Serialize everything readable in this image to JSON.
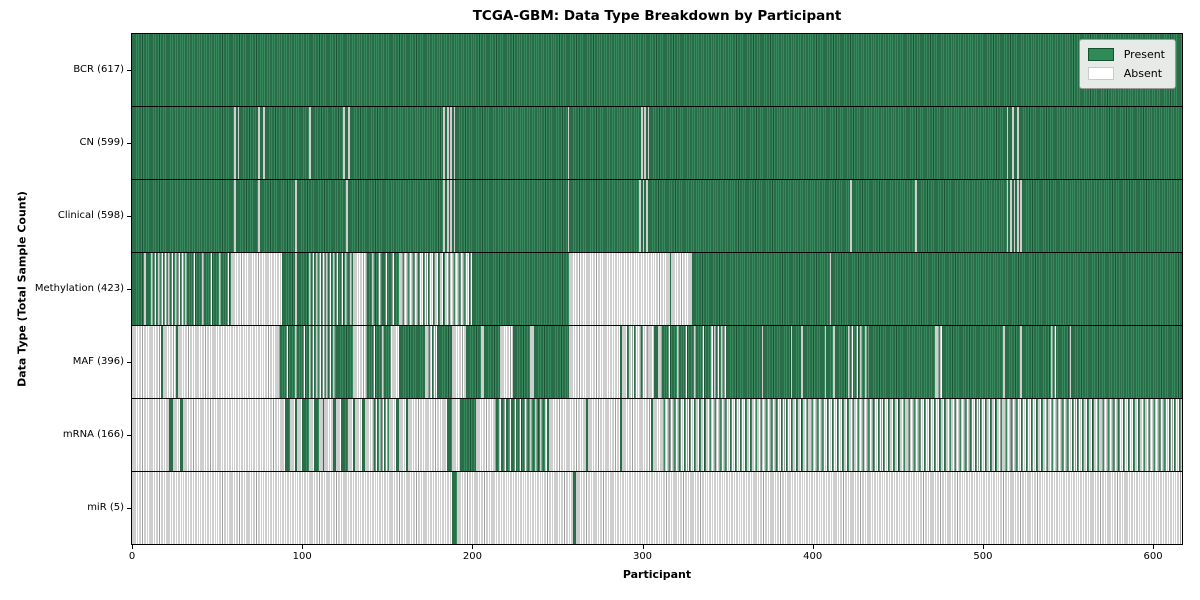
{
  "title": "TCGA-GBM: Data Type Breakdown by Participant",
  "xlabel": "Participant",
  "ylabel": "Data Type (Total Sample Count)",
  "legend": {
    "present_label": "Present",
    "absent_label": "Absent"
  },
  "colors": {
    "present": "#38895e",
    "present_edge": "#1a5434",
    "absent": "#ffffff",
    "absent_edge": "#9e9e9e",
    "axis": "#000000",
    "legend_bg": "#e7ebe7"
  },
  "x_ticks": [
    "0",
    "100",
    "200",
    "300",
    "400",
    "500",
    "600"
  ],
  "x_tick_values": [
    0,
    100,
    200,
    300,
    400,
    500,
    600
  ],
  "chart_data": {
    "type": "heatmap",
    "title": "TCGA-GBM: Data Type Breakdown by Participant",
    "xlabel": "Participant",
    "ylabel": "Data Type (Total Sample Count)",
    "legend": [
      "Present",
      "Absent"
    ],
    "legend_position": "upper right",
    "x_range": [
      0,
      617
    ],
    "states": {
      "1": "present",
      "0": "absent",
      "fraction": "share of participants present in segment"
    },
    "rows": [
      {
        "name": "bcr",
        "label": "BCR (617)",
        "total": 617,
        "segments": [
          [
            0,
            617,
            1
          ]
        ]
      },
      {
        "name": "cn",
        "label": "CN (599)",
        "total": 599,
        "segments": [
          [
            0,
            60,
            1
          ],
          [
            60,
            61,
            0
          ],
          [
            61,
            62,
            1
          ],
          [
            62,
            63,
            0
          ],
          [
            63,
            74,
            1
          ],
          [
            74,
            75,
            0
          ],
          [
            75,
            77,
            1
          ],
          [
            77,
            78,
            0
          ],
          [
            78,
            104,
            1
          ],
          [
            104,
            105,
            0
          ],
          [
            105,
            124,
            1
          ],
          [
            124,
            125,
            0
          ],
          [
            125,
            127,
            1
          ],
          [
            127,
            128,
            0
          ],
          [
            128,
            183,
            1
          ],
          [
            183,
            184,
            0
          ],
          [
            184,
            185,
            1
          ],
          [
            185,
            186,
            0
          ],
          [
            186,
            187,
            1
          ],
          [
            187,
            188,
            0
          ],
          [
            188,
            189,
            1
          ],
          [
            189,
            190,
            0
          ],
          [
            190,
            256,
            1
          ],
          [
            256,
            257,
            0
          ],
          [
            257,
            299,
            1
          ],
          [
            299,
            300,
            0
          ],
          [
            300,
            301,
            1
          ],
          [
            301,
            302,
            0
          ],
          [
            302,
            303,
            1
          ],
          [
            303,
            304,
            0
          ],
          [
            304,
            514,
            1
          ],
          [
            514,
            515,
            0
          ],
          [
            515,
            517,
            1
          ],
          [
            517,
            518,
            0
          ],
          [
            518,
            520,
            1
          ],
          [
            520,
            521,
            0
          ],
          [
            521,
            617,
            1
          ]
        ]
      },
      {
        "name": "clinical",
        "label": "Clinical (598)",
        "total": 598,
        "segments": [
          [
            0,
            60,
            1
          ],
          [
            60,
            61,
            0
          ],
          [
            61,
            74,
            1
          ],
          [
            74,
            75,
            0
          ],
          [
            75,
            96,
            1
          ],
          [
            96,
            97,
            0
          ],
          [
            97,
            126,
            1
          ],
          [
            126,
            127,
            0
          ],
          [
            127,
            183,
            1
          ],
          [
            183,
            184,
            0
          ],
          [
            184,
            185,
            1
          ],
          [
            185,
            186,
            0
          ],
          [
            186,
            187,
            1
          ],
          [
            187,
            188,
            0
          ],
          [
            188,
            189,
            1
          ],
          [
            189,
            190,
            0
          ],
          [
            190,
            256,
            1
          ],
          [
            256,
            257,
            0
          ],
          [
            257,
            298,
            1
          ],
          [
            298,
            299,
            0
          ],
          [
            299,
            300,
            1
          ],
          [
            300,
            301,
            0
          ],
          [
            301,
            302,
            1
          ],
          [
            302,
            303,
            0
          ],
          [
            303,
            422,
            1
          ],
          [
            422,
            423,
            0
          ],
          [
            423,
            460,
            1
          ],
          [
            460,
            461,
            0
          ],
          [
            461,
            514,
            1
          ],
          [
            514,
            515,
            0
          ],
          [
            515,
            516,
            1
          ],
          [
            516,
            517,
            0
          ],
          [
            517,
            518,
            1
          ],
          [
            518,
            519,
            0
          ],
          [
            519,
            520,
            1
          ],
          [
            520,
            521,
            0
          ],
          [
            521,
            522,
            1
          ],
          [
            522,
            523,
            0
          ],
          [
            523,
            617,
            1
          ]
        ]
      },
      {
        "name": "methylation",
        "label": "Methylation (423)",
        "total": 423,
        "segments": [
          [
            0,
            7,
            1
          ],
          [
            7,
            8,
            0
          ],
          [
            8,
            11,
            1
          ],
          [
            11,
            31,
            0.5
          ],
          [
            31,
            58,
            0.8
          ],
          [
            58,
            88,
            0
          ],
          [
            88,
            96,
            1
          ],
          [
            96,
            97,
            0
          ],
          [
            97,
            104,
            1
          ],
          [
            104,
            118,
            0.5
          ],
          [
            118,
            130,
            0.6
          ],
          [
            130,
            137,
            0
          ],
          [
            137,
            157,
            0.75
          ],
          [
            157,
            200,
            0.3
          ],
          [
            200,
            257,
            1
          ],
          [
            257,
            316,
            0
          ],
          [
            316,
            317,
            1
          ],
          [
            317,
            329,
            0
          ],
          [
            329,
            410,
            1
          ],
          [
            410,
            411,
            0
          ],
          [
            411,
            617,
            1
          ]
        ]
      },
      {
        "name": "maf",
        "label": "MAF (396)",
        "total": 396,
        "segments": [
          [
            0,
            17,
            0
          ],
          [
            17,
            18,
            1
          ],
          [
            18,
            26,
            0
          ],
          [
            26,
            27,
            1
          ],
          [
            27,
            86,
            0
          ],
          [
            86,
            104,
            0.8
          ],
          [
            104,
            120,
            0.5
          ],
          [
            120,
            130,
            1
          ],
          [
            130,
            137,
            0
          ],
          [
            137,
            153,
            0.8
          ],
          [
            153,
            157,
            0
          ],
          [
            157,
            172,
            1
          ],
          [
            172,
            180,
            0.4
          ],
          [
            180,
            188,
            1
          ],
          [
            188,
            196,
            0
          ],
          [
            196,
            205,
            1
          ],
          [
            205,
            207,
            0
          ],
          [
            207,
            216,
            1
          ],
          [
            216,
            224,
            0
          ],
          [
            224,
            234,
            1
          ],
          [
            234,
            236,
            0
          ],
          [
            236,
            257,
            1
          ],
          [
            257,
            287,
            0
          ],
          [
            287,
            288,
            1
          ],
          [
            288,
            303,
            0.25
          ],
          [
            303,
            307,
            0
          ],
          [
            307,
            309,
            1
          ],
          [
            309,
            310,
            0
          ],
          [
            310,
            342,
            0.85
          ],
          [
            342,
            349,
            0.5
          ],
          [
            349,
            370,
            1
          ],
          [
            370,
            371,
            0
          ],
          [
            371,
            387,
            1
          ],
          [
            387,
            388,
            0
          ],
          [
            388,
            393,
            1
          ],
          [
            393,
            394,
            0
          ],
          [
            394,
            407,
            1
          ],
          [
            407,
            408,
            0
          ],
          [
            408,
            412,
            1
          ],
          [
            412,
            413,
            0
          ],
          [
            413,
            421,
            1
          ],
          [
            421,
            433,
            0.55
          ],
          [
            433,
            472,
            1
          ],
          [
            472,
            476,
            0.4
          ],
          [
            476,
            512,
            1
          ],
          [
            512,
            513,
            0
          ],
          [
            513,
            522,
            1
          ],
          [
            522,
            523,
            0
          ],
          [
            523,
            540,
            1
          ],
          [
            540,
            544,
            0.5
          ],
          [
            544,
            551,
            1
          ],
          [
            551,
            552,
            0
          ],
          [
            552,
            617,
            1
          ]
        ]
      },
      {
        "name": "mrna",
        "label": "mRNA (166)",
        "total": 166,
        "segments": [
          [
            0,
            22,
            0
          ],
          [
            22,
            24,
            1
          ],
          [
            24,
            28,
            0
          ],
          [
            28,
            30,
            1
          ],
          [
            30,
            90,
            0
          ],
          [
            90,
            93,
            1
          ],
          [
            93,
            96,
            0
          ],
          [
            96,
            97,
            1
          ],
          [
            97,
            100,
            0
          ],
          [
            100,
            104,
            1
          ],
          [
            104,
            107,
            0
          ],
          [
            107,
            110,
            1
          ],
          [
            110,
            112,
            0
          ],
          [
            112,
            113,
            1
          ],
          [
            113,
            118,
            0
          ],
          [
            118,
            120,
            1
          ],
          [
            120,
            123,
            0
          ],
          [
            123,
            127,
            1
          ],
          [
            127,
            130,
            0
          ],
          [
            130,
            131,
            1
          ],
          [
            131,
            135,
            0
          ],
          [
            135,
            137,
            1
          ],
          [
            137,
            141,
            0
          ],
          [
            141,
            151,
            0.5
          ],
          [
            151,
            155,
            0
          ],
          [
            155,
            157,
            1
          ],
          [
            157,
            161,
            0
          ],
          [
            161,
            162,
            1
          ],
          [
            162,
            185,
            0
          ],
          [
            185,
            188,
            1
          ],
          [
            188,
            193,
            0
          ],
          [
            193,
            202,
            1
          ],
          [
            202,
            213,
            0
          ],
          [
            213,
            245,
            0.7
          ],
          [
            245,
            267,
            0
          ],
          [
            267,
            268,
            1
          ],
          [
            268,
            287,
            0
          ],
          [
            287,
            288,
            1
          ],
          [
            288,
            305,
            0
          ],
          [
            305,
            306,
            1
          ],
          [
            306,
            310,
            0
          ],
          [
            310,
            617,
            0.35
          ]
        ]
      },
      {
        "name": "mir",
        "label": "miR (5)",
        "total": 5,
        "segments": [
          [
            0,
            188,
            0
          ],
          [
            188,
            191,
            1
          ],
          [
            191,
            259,
            0
          ],
          [
            259,
            261,
            1
          ],
          [
            261,
            617,
            0
          ]
        ]
      }
    ]
  }
}
